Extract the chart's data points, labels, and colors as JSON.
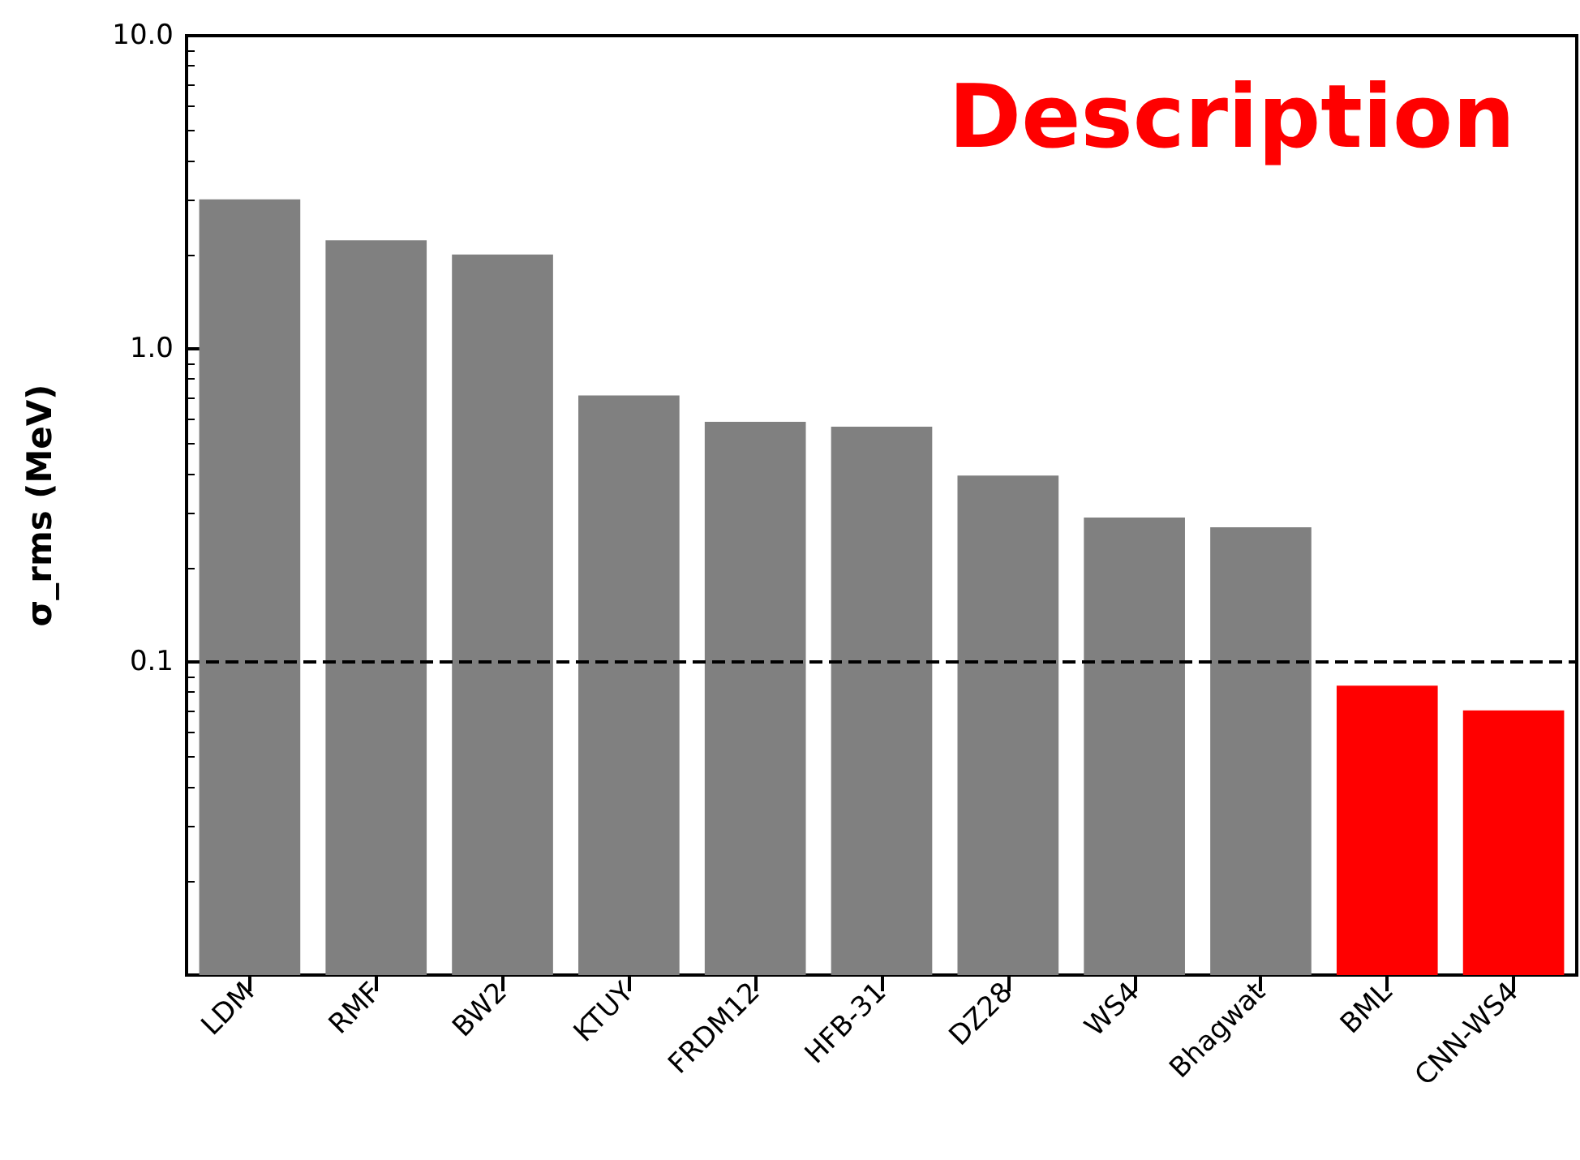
{
  "chart_data": {
    "type": "bar",
    "ylabel": "σ_rms (MeV)",
    "categories": [
      "LDM",
      "RMF",
      "BW2",
      "KTUY",
      "FRDM12",
      "HFB-31",
      "DZ28",
      "WS4",
      "Bhagwat",
      "BML",
      "CNN-WS4"
    ],
    "values": [
      3.0,
      2.22,
      2.0,
      0.71,
      0.585,
      0.564,
      0.394,
      0.289,
      0.269,
      0.084,
      0.07
    ],
    "colors": [
      "#808080",
      "#808080",
      "#808080",
      "#808080",
      "#808080",
      "#808080",
      "#808080",
      "#808080",
      "#808080",
      "#ff0000",
      "#ff0000"
    ],
    "log": true,
    "ylim": [
      0.01,
      10
    ],
    "yticks": [
      {
        "value": 0.1,
        "label": "0.1"
      },
      {
        "value": 1,
        "label": "1.0"
      },
      {
        "value": 10,
        "label": "10.0"
      }
    ],
    "ref_lines": [
      {
        "axis": "y",
        "value": 0.1,
        "color": "#000000",
        "line_style": "dashed"
      }
    ],
    "annotations": [
      "Description"
    ],
    "grid": false
  }
}
